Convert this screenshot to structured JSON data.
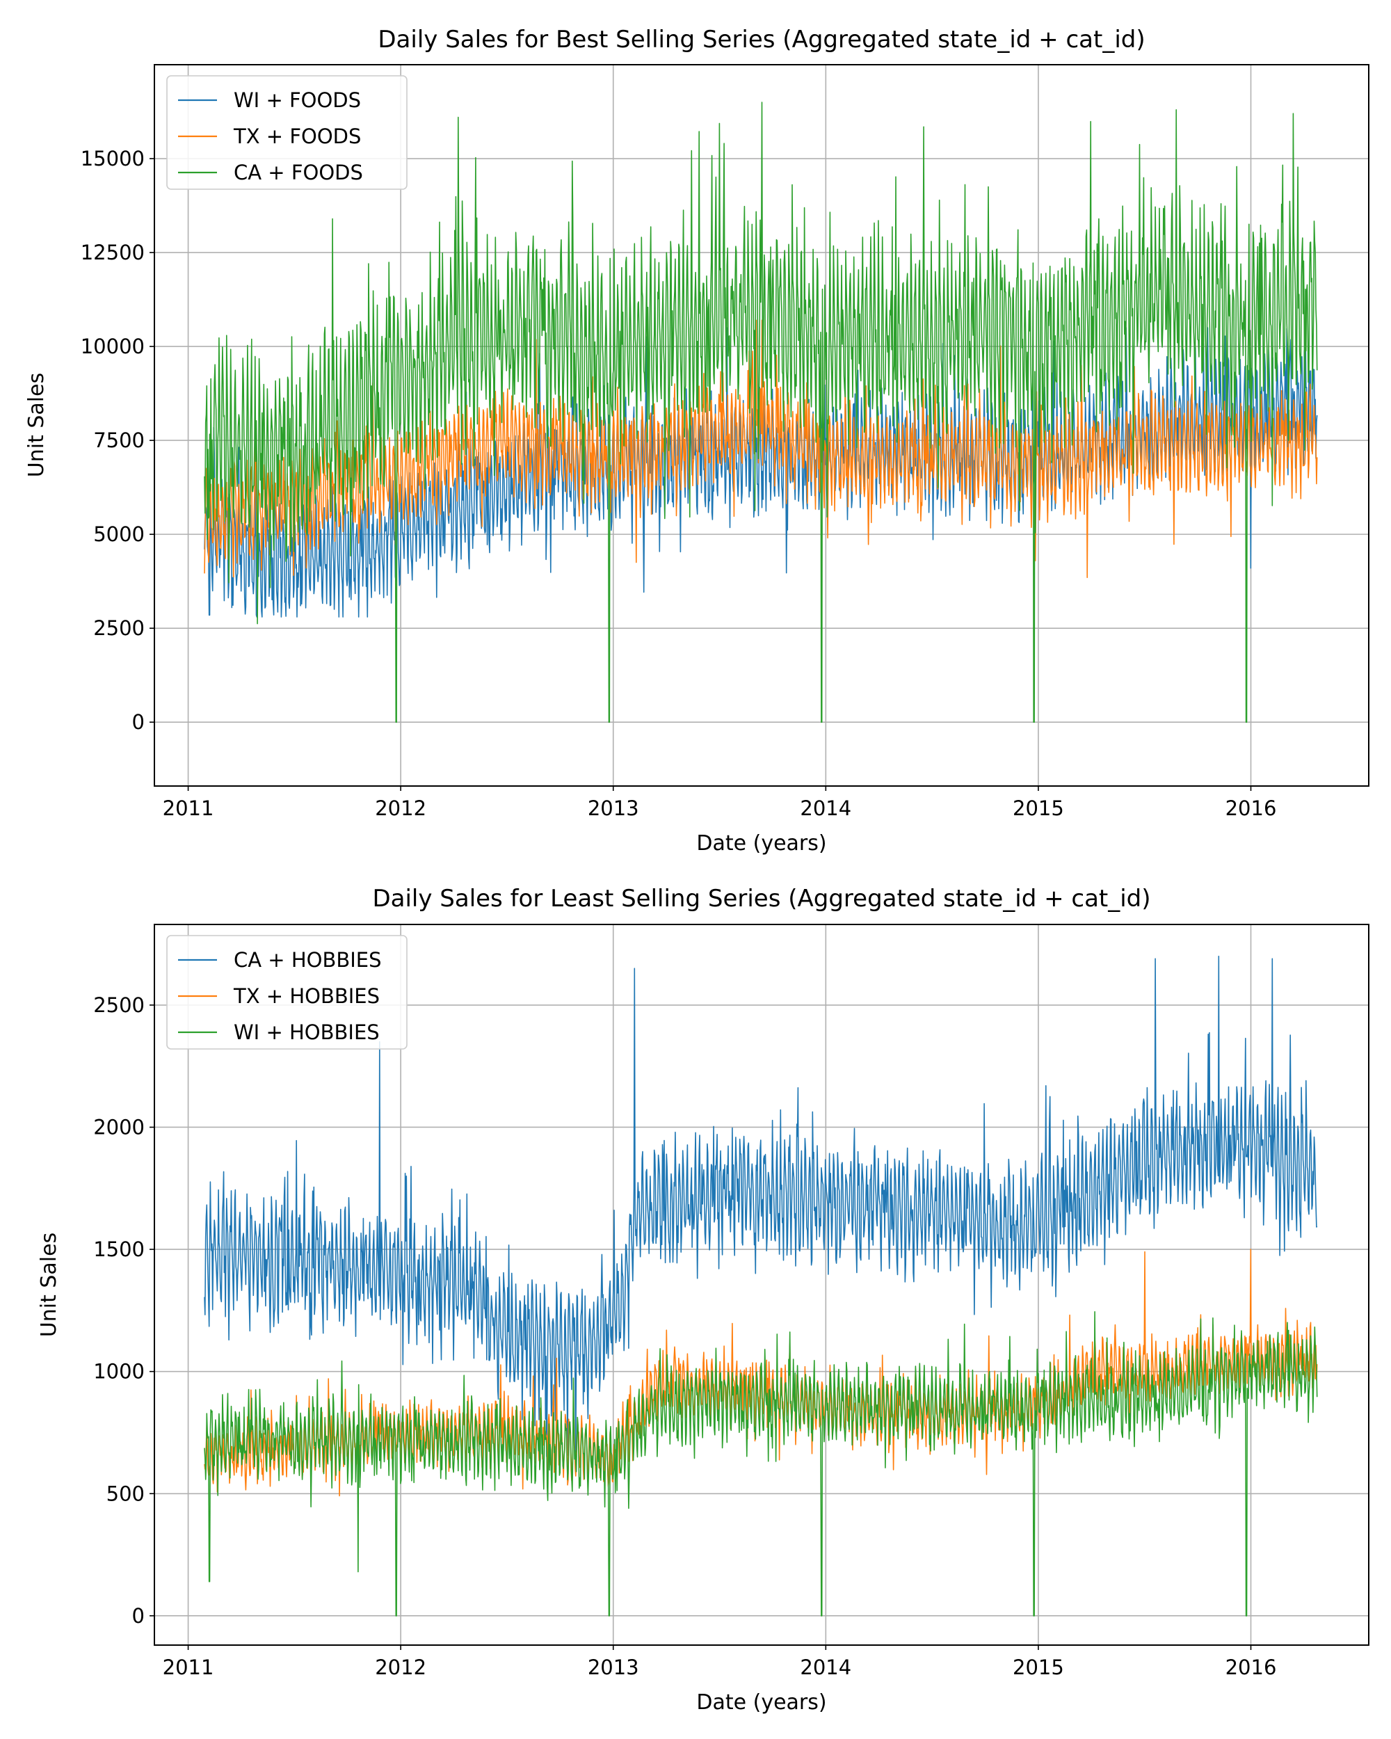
{
  "chart_data": [
    {
      "type": "line",
      "title": "Daily Sales for Best Selling Series (Aggregated state_id + cat_id)",
      "xlabel": "Date (years)",
      "ylabel": "Unit Sales",
      "xlim": [
        "2010-11-04",
        "2016-07-22"
      ],
      "ylim": [
        -1700,
        17500
      ],
      "x_range": [
        "2011-01-29",
        "2016-04-24"
      ],
      "xticks": [
        2011,
        2012,
        2013,
        2014,
        2015,
        2016
      ],
      "yticks": [
        0,
        2500,
        5000,
        7500,
        10000,
        12500,
        15000
      ],
      "grid": true,
      "legend": "top-left",
      "series": [
        {
          "name": "WI + FOODS",
          "color": "#1f77b4",
          "trend": [
            [
              2011.08,
              5200
            ],
            [
              2011.3,
              4300
            ],
            [
              2011.6,
              4400
            ],
            [
              2011.9,
              4600
            ],
            [
              2012.2,
              5600
            ],
            [
              2012.6,
              6600
            ],
            [
              2013.0,
              6800
            ],
            [
              2013.5,
              7000
            ],
            [
              2014.0,
              7100
            ],
            [
              2014.5,
              7200
            ],
            [
              2015.0,
              7000
            ],
            [
              2015.5,
              7800
            ],
            [
              2016.0,
              8300
            ],
            [
              2016.31,
              8700
            ]
          ],
          "amplitude": 2000,
          "min": 2800,
          "max": 10500,
          "dips": [],
          "extremes": [
            [
              2011.1,
              2850
            ],
            [
              2011.32,
              2850
            ],
            [
              2016.0,
              4100
            ]
          ]
        },
        {
          "name": "TX + FOODS",
          "color": "#ff7f0e",
          "trend": [
            [
              2011.08,
              5400
            ],
            [
              2011.5,
              5800
            ],
            [
              2012.0,
              6600
            ],
            [
              2012.5,
              7500
            ],
            [
              2013.0,
              7000
            ],
            [
              2013.7,
              8000
            ],
            [
              2014.0,
              7000
            ],
            [
              2014.5,
              7000
            ],
            [
              2015.0,
              6800
            ],
            [
              2015.5,
              7300
            ],
            [
              2016.0,
              7400
            ],
            [
              2016.31,
              7600
            ]
          ],
          "amplitude": 1700,
          "min": 3800,
          "max": 10700,
          "dips": [],
          "extremes": [
            [
              2013.7,
              10700
            ],
            [
              2015.23,
              3850
            ]
          ]
        },
        {
          "name": "CA + FOODS",
          "color": "#2ca02c",
          "trend": [
            [
              2011.08,
              7400
            ],
            [
              2011.5,
              7200
            ],
            [
              2011.8,
              8400
            ],
            [
              2012.2,
              10000
            ],
            [
              2012.6,
              10500
            ],
            [
              2013.0,
              9800
            ],
            [
              2013.6,
              11000
            ],
            [
              2014.0,
              10200
            ],
            [
              2014.5,
              10400
            ],
            [
              2015.0,
              9900
            ],
            [
              2015.6,
              11400
            ],
            [
              2016.0,
              10500
            ],
            [
              2016.31,
              11200
            ]
          ],
          "amplitude": 3400,
          "min": 0,
          "max": 16500,
          "dips": [
            [
              2011.98,
              0
            ],
            [
              2012.98,
              0
            ],
            [
              2013.98,
              0
            ],
            [
              2014.98,
              0
            ],
            [
              2015.98,
              0
            ]
          ],
          "extremes": [
            [
              2012.27,
              16100
            ],
            [
              2013.7,
              16500
            ],
            [
              2015.65,
              16300
            ],
            [
              2016.2,
              16200
            ]
          ]
        }
      ]
    },
    {
      "type": "line",
      "title": "Daily Sales for Least Selling Series (Aggregated state_id + cat_id)",
      "xlabel": "Date (years)",
      "ylabel": "Unit Sales",
      "xlim": [
        "2010-11-04",
        "2016-07-22"
      ],
      "ylim": [
        -120,
        2830
      ],
      "x_range": [
        "2011-01-29",
        "2016-04-24"
      ],
      "xticks": [
        2011,
        2012,
        2013,
        2014,
        2015,
        2016
      ],
      "yticks": [
        0,
        500,
        1000,
        1500,
        2000,
        2500
      ],
      "grid": true,
      "legend": "top-left",
      "series": [
        {
          "name": "CA + HOBBIES",
          "color": "#1f77b4",
          "trend": [
            [
              2011.08,
              1500
            ],
            [
              2011.5,
              1450
            ],
            [
              2012.0,
              1400
            ],
            [
              2012.35,
              1350
            ],
            [
              2012.45,
              1150
            ],
            [
              2012.9,
              1100
            ],
            [
              2013.05,
              1250
            ],
            [
              2013.1,
              1650
            ],
            [
              2013.6,
              1750
            ],
            [
              2014.0,
              1700
            ],
            [
              2014.5,
              1650
            ],
            [
              2014.9,
              1600
            ],
            [
              2015.5,
              1850
            ],
            [
              2016.0,
              1950
            ],
            [
              2016.31,
              1800
            ]
          ],
          "amplitude": 330,
          "min": 540,
          "max": 2700,
          "dips": [],
          "extremes": [
            [
              2011.9,
              2350
            ],
            [
              2013.1,
              2650
            ],
            [
              2015.55,
              2690
            ],
            [
              2015.85,
              2700
            ],
            [
              2016.1,
              2690
            ]
          ]
        },
        {
          "name": "TX + HOBBIES",
          "color": "#ff7f0e",
          "trend": [
            [
              2011.08,
              650
            ],
            [
              2011.5,
              680
            ],
            [
              2012.0,
              750
            ],
            [
              2012.5,
              760
            ],
            [
              2013.0,
              650
            ],
            [
              2013.2,
              950
            ],
            [
              2013.6,
              930
            ],
            [
              2014.0,
              850
            ],
            [
              2014.5,
              820
            ],
            [
              2015.0,
              850
            ],
            [
              2015.3,
              1020
            ],
            [
              2015.6,
              1000
            ],
            [
              2016.0,
              1050
            ],
            [
              2016.31,
              1050
            ]
          ],
          "amplitude": 170,
          "min": 340,
          "max": 1500,
          "dips": [],
          "extremes": [
            [
              2015.5,
              1490
            ],
            [
              2016.0,
              1500
            ]
          ]
        },
        {
          "name": "WI + HOBBIES",
          "color": "#2ca02c",
          "trend": [
            [
              2011.08,
              720
            ],
            [
              2011.5,
              720
            ],
            [
              2012.0,
              720
            ],
            [
              2012.5,
              700
            ],
            [
              2013.0,
              640
            ],
            [
              2013.2,
              850
            ],
            [
              2013.6,
              880
            ],
            [
              2014.0,
              870
            ],
            [
              2014.5,
              850
            ],
            [
              2015.0,
              860
            ],
            [
              2015.5,
              900
            ],
            [
              2016.0,
              980
            ],
            [
              2016.31,
              1000
            ]
          ],
          "amplitude": 200,
          "min": 0,
          "max": 1330,
          "dips": [
            [
              2011.98,
              0
            ],
            [
              2012.98,
              0
            ],
            [
              2013.98,
              0
            ],
            [
              2014.98,
              0
            ],
            [
              2015.98,
              0
            ]
          ],
          "extremes": [
            [
              2011.1,
              140
            ],
            [
              2011.8,
              180
            ]
          ]
        }
      ]
    }
  ]
}
